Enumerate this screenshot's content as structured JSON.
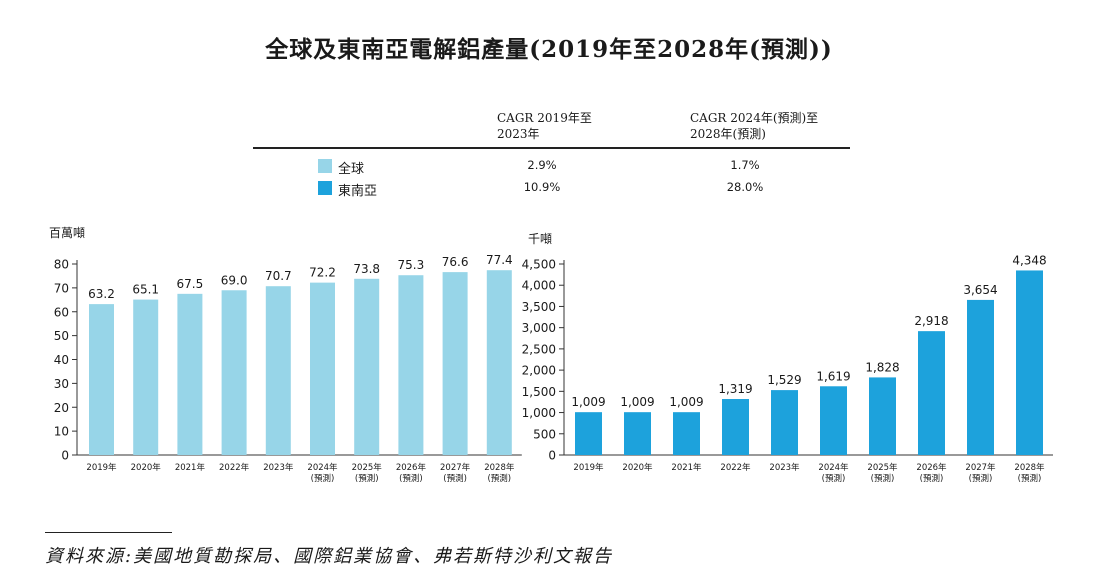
{
  "title": "全球及東南亞電解鋁產量(2019年至2028年(預測))",
  "cagr_table": {
    "header_1": "CAGR 2019年至\n2023年",
    "header_2": "CAGR 2024年(預測)至\n2028年(預測)",
    "rows": [
      {
        "label": "全球",
        "color": "#97d5e8",
        "cagr_1": "2.9%",
        "cagr_2": "1.7%"
      },
      {
        "label": "東南亞",
        "color": "#1da2dc",
        "cagr_1": "10.9%",
        "cagr_2": "28.0%"
      }
    ]
  },
  "source": "資料來源:美國地質勘探局、國際鋁業協會、弗若斯特沙利文報告",
  "chart_data": [
    {
      "type": "bar",
      "name": "全球",
      "ylabel": "百萬噸",
      "color": "#97d5e8",
      "categories": [
        "2019年",
        "2020年",
        "2021年",
        "2022年",
        "2023年",
        "2024年\n(預測)",
        "2025年\n(預測)",
        "2026年\n(預測)",
        "2027年\n(預測)",
        "2028年\n(預測)"
      ],
      "values": [
        63.2,
        65.1,
        67.5,
        69.0,
        70.7,
        72.2,
        73.8,
        75.3,
        76.6,
        77.4
      ],
      "value_labels": [
        "63.2",
        "65.1",
        "67.5",
        "69.0",
        "70.7",
        "72.2",
        "73.8",
        "75.3",
        "76.6",
        "77.4"
      ],
      "ylim": [
        0,
        80
      ],
      "yticks": [
        0,
        10,
        20,
        30,
        40,
        50,
        60,
        70,
        80
      ],
      "ytick_labels": [
        "0",
        "10",
        "20",
        "30",
        "40",
        "50",
        "60",
        "70",
        "80"
      ]
    },
    {
      "type": "bar",
      "name": "東南亞",
      "ylabel": "千噸",
      "color": "#1da2dc",
      "categories": [
        "2019年",
        "2020年",
        "2021年",
        "2022年",
        "2023年",
        "2024年\n(預測)",
        "2025年\n(預測)",
        "2026年\n(預測)",
        "2027年\n(預測)",
        "2028年\n(預測)"
      ],
      "values": [
        1009,
        1009,
        1009,
        1319,
        1529,
        1619,
        1828,
        2918,
        3654,
        4348
      ],
      "value_labels": [
        "1,009",
        "1,009",
        "1,009",
        "1,319",
        "1,529",
        "1,619",
        "1,828",
        "2,918",
        "3,654",
        "4,348"
      ],
      "ylim": [
        0,
        4500
      ],
      "yticks": [
        0,
        500,
        1000,
        1500,
        2000,
        2500,
        3000,
        3500,
        4000,
        4500
      ],
      "ytick_labels": [
        "0",
        "500",
        "1,000",
        "1,500",
        "2,000",
        "2,500",
        "3,000",
        "3,500",
        "4,000",
        "4,500"
      ]
    }
  ]
}
